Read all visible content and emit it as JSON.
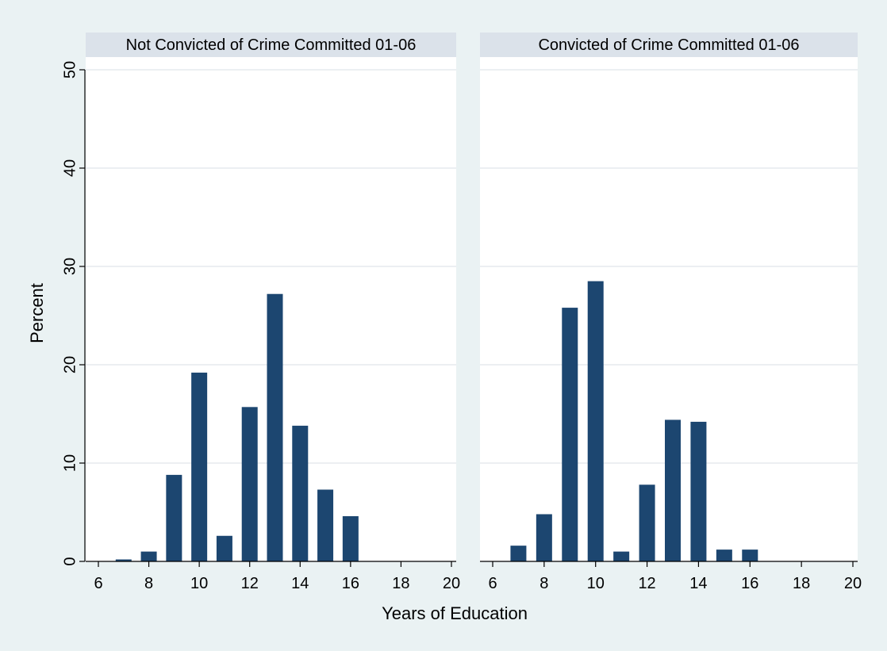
{
  "chart_data": {
    "type": "bar",
    "xlabel": "Years of Education",
    "ylabel": "Percent",
    "xlim": [
      6,
      20
    ],
    "ylim": [
      0,
      50
    ],
    "x_ticks": [
      6,
      8,
      10,
      12,
      14,
      16,
      18,
      20
    ],
    "y_ticks": [
      0,
      10,
      20,
      30,
      40,
      50
    ],
    "grid": true,
    "bar_color": "#1c4670",
    "panel_strip_color": "#dbe2ea",
    "panels": [
      {
        "title": "Not Convicted of Crime Committed 01-06",
        "points": [
          {
            "x": 7,
            "y": 0.2
          },
          {
            "x": 8,
            "y": 1.0
          },
          {
            "x": 9,
            "y": 8.8
          },
          {
            "x": 10,
            "y": 19.2
          },
          {
            "x": 11,
            "y": 2.6
          },
          {
            "x": 12,
            "y": 15.7
          },
          {
            "x": 13,
            "y": 27.2
          },
          {
            "x": 14,
            "y": 13.8
          },
          {
            "x": 15,
            "y": 7.3
          },
          {
            "x": 16,
            "y": 4.6
          }
        ]
      },
      {
        "title": "Convicted of Crime Committed 01-06",
        "points": [
          {
            "x": 7,
            "y": 1.6
          },
          {
            "x": 8,
            "y": 4.8
          },
          {
            "x": 9,
            "y": 25.8
          },
          {
            "x": 10,
            "y": 28.5
          },
          {
            "x": 11,
            "y": 1.0
          },
          {
            "x": 12,
            "y": 7.8
          },
          {
            "x": 13,
            "y": 14.4
          },
          {
            "x": 14,
            "y": 14.2
          },
          {
            "x": 15,
            "y": 1.2
          },
          {
            "x": 16,
            "y": 1.2
          }
        ]
      }
    ]
  }
}
